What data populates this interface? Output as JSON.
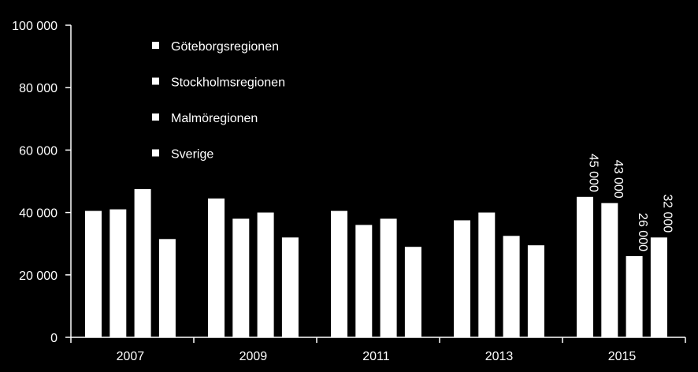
{
  "chart_data": {
    "type": "bar",
    "categories": [
      "2007",
      "2009",
      "2011",
      "2013",
      "2015"
    ],
    "series": [
      {
        "name": "Göteborgsregionen",
        "values": [
          40500,
          44500,
          40500,
          37500,
          45000
        ]
      },
      {
        "name": "Stockholmsregionen",
        "values": [
          41000,
          38000,
          36000,
          40000,
          43000
        ]
      },
      {
        "name": "Malmöregionen",
        "values": [
          47500,
          40000,
          38000,
          32500,
          26000
        ]
      },
      {
        "name": "Sverige",
        "values": [
          31500,
          32000,
          29000,
          29500,
          32000
        ]
      }
    ],
    "data_labels": [
      {
        "category": "2015",
        "series": "Göteborgsregionen",
        "text": "45 000"
      },
      {
        "category": "2015",
        "series": "Stockholmsregionen",
        "text": "43 000"
      },
      {
        "category": "2015",
        "series": "Malmöregionen",
        "text": "26 000"
      },
      {
        "category": "2015",
        "series": "Sverige",
        "text": "32 000"
      }
    ],
    "y_ticks": [
      {
        "value": 0,
        "label": "0"
      },
      {
        "value": 20000,
        "label": "20 000"
      },
      {
        "value": 40000,
        "label": "40 000"
      },
      {
        "value": 60000,
        "label": "60 000"
      },
      {
        "value": 80000,
        "label": "80 000"
      },
      {
        "value": 100000,
        "label": "100 000"
      }
    ],
    "ylim": [
      0,
      100000
    ],
    "title": "",
    "xlabel": "",
    "ylabel": "",
    "grid": false,
    "legend_position": "top-left",
    "colors": {
      "background": "#000000",
      "bar": "#ffffff",
      "axis": "#ffffff",
      "text": "#ffffff"
    }
  }
}
